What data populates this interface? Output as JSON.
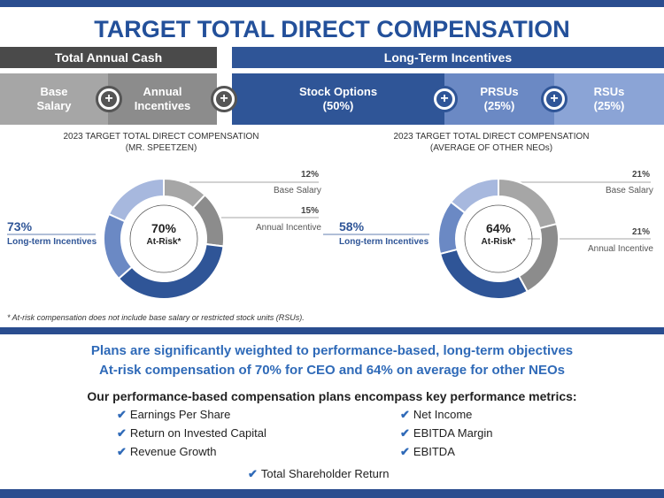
{
  "title": "TARGET TOTAL DIRECT COMPENSATION",
  "headers": {
    "cash": "Total Annual Cash",
    "lti": "Long-Term Incentives"
  },
  "segments": {
    "base": "Base\nSalary",
    "annual": "Annual\nIncentives",
    "stock_options": "Stock Options\n(50%)",
    "prsus": "PRSUs\n(25%)",
    "rsus": "RSUs\n(25%)"
  },
  "colors": {
    "brand": "#2f5597",
    "dark_gray": "#4a4a4a",
    "accent_blue": "#2f6ab8"
  },
  "chart_data": [
    {
      "type": "pie",
      "title": "2023 TARGET TOTAL DIRECT COMPENSATION\n(MR. SPEETZEN)",
      "center_value": "70%",
      "center_label": "At-Risk*",
      "slices": [
        {
          "name": "Base Salary",
          "value": 12,
          "label": "12%",
          "color": "#a6a6a6"
        },
        {
          "name": "Annual Incentive",
          "value": 15,
          "label": "15%",
          "color": "#8c8c8c"
        },
        {
          "name": "Stock Options",
          "value": 36.5,
          "color": "#2f5597"
        },
        {
          "name": "PRSUs",
          "value": 18.25,
          "color": "#6b89c4"
        },
        {
          "name": "RSUs",
          "value": 18.25,
          "color": "#a7b8de"
        }
      ],
      "lti_total": "73%",
      "lti_label": "Long-term Incentives"
    },
    {
      "type": "pie",
      "title": "2023 TARGET TOTAL DIRECT COMPENSATION\n(AVERAGE OF OTHER NEOs)",
      "center_value": "64%",
      "center_label": "At-Risk*",
      "slices": [
        {
          "name": "Base Salary",
          "value": 21,
          "label": "21%",
          "color": "#a6a6a6"
        },
        {
          "name": "Annual Incentive",
          "value": 21,
          "label": "21%",
          "color": "#8c8c8c"
        },
        {
          "name": "Stock Options",
          "value": 29,
          "color": "#2f5597"
        },
        {
          "name": "PRSUs",
          "value": 14.5,
          "color": "#6b89c4"
        },
        {
          "name": "RSUs",
          "value": 14.5,
          "color": "#a7b8de"
        }
      ],
      "lti_total": "58%",
      "lti_label": "Long-term Incentives"
    }
  ],
  "footnote": "* At-risk compensation does not include base salary or restricted stock units (RSUs).",
  "headline1": "Plans are significantly weighted to performance-based, long-term objectives",
  "headline2": "At-risk compensation of 70% for CEO and 64% on average for other NEOs",
  "subheadline": "Our performance-based compensation plans encompass key performance metrics:",
  "check_icon": "✔",
  "metrics": [
    "Earnings Per Share",
    "Return on Invested Capital",
    "Revenue Growth",
    "Net Income",
    "EBITDA Margin",
    "EBITDA",
    "Total Shareholder Return"
  ]
}
